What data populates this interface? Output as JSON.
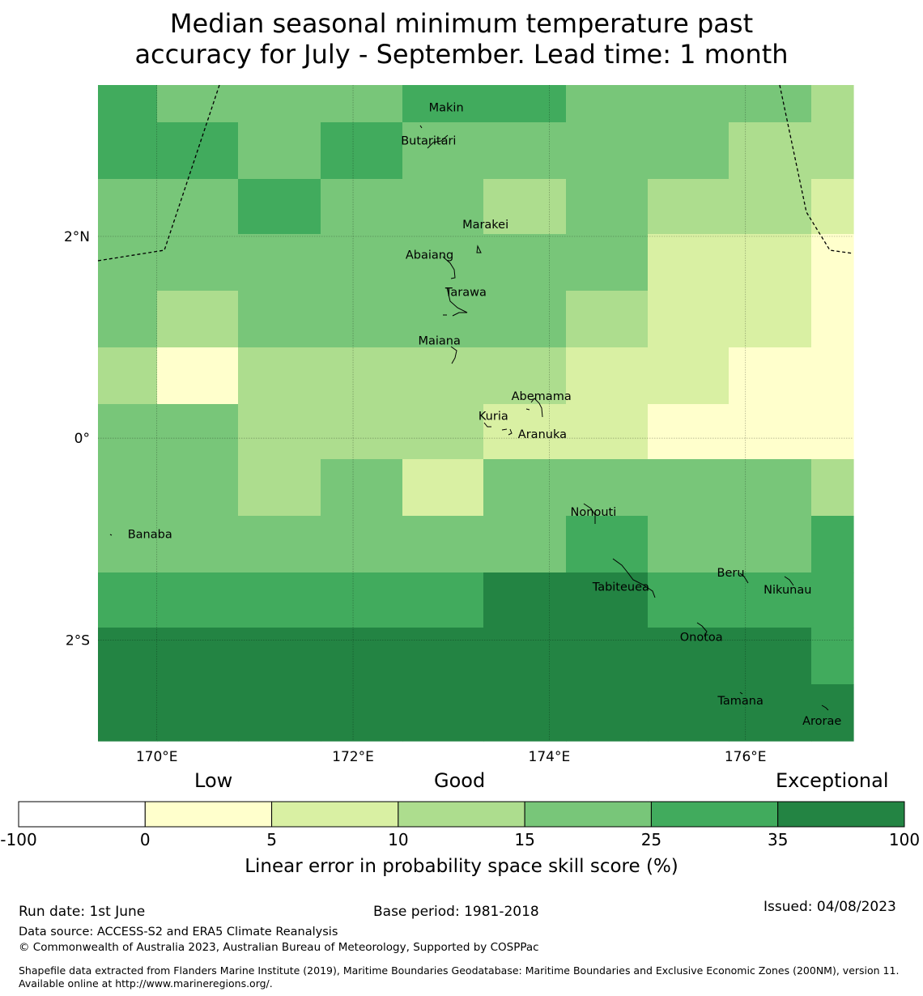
{
  "title": {
    "line1": "Median seasonal minimum temperature past",
    "line2": "accuracy for July - September. Lead time: 1 month"
  },
  "map": {
    "lon_range": [
      169.4,
      177.1
    ],
    "lat_range": [
      -3.0,
      3.5
    ],
    "lat_labels": [
      {
        "lat": 2,
        "label": "2°N"
      },
      {
        "lat": 0,
        "label": "0°"
      },
      {
        "lat": -2,
        "label": "2°S"
      }
    ],
    "lon_labels": [
      {
        "lon": 170,
        "label": "170°E"
      },
      {
        "lon": 172,
        "label": "172°E"
      },
      {
        "lon": 174,
        "label": "174°E"
      },
      {
        "lon": 176,
        "label": "176°E"
      }
    ],
    "grid_lon_edges": [
      169.4,
      170.0,
      170.83,
      171.67,
      172.5,
      173.33,
      174.17,
      175.0,
      175.83,
      176.67,
      177.1
    ],
    "grid_lat_edges": [
      3.5,
      3.13,
      2.57,
      2.02,
      1.46,
      0.9,
      0.34,
      -0.21,
      -0.77,
      -1.33,
      -1.88,
      -2.44,
      -3.0
    ],
    "skill_cells": [
      [
        5,
        4,
        4,
        4,
        5,
        5,
        4,
        4,
        4,
        3
      ],
      [
        5,
        5,
        4,
        5,
        4,
        4,
        4,
        4,
        3,
        3
      ],
      [
        4,
        4,
        5,
        4,
        4,
        3,
        4,
        3,
        3,
        2
      ],
      [
        4,
        4,
        4,
        4,
        4,
        4,
        4,
        2,
        2,
        1
      ],
      [
        4,
        3,
        4,
        4,
        4,
        4,
        3,
        2,
        2,
        1
      ],
      [
        3,
        1,
        3,
        3,
        3,
        3,
        2,
        2,
        1,
        1
      ],
      [
        4,
        4,
        3,
        3,
        3,
        2,
        2,
        1,
        1,
        1
      ],
      [
        4,
        4,
        3,
        4,
        2,
        4,
        4,
        4,
        4,
        3
      ],
      [
        4,
        4,
        4,
        4,
        4,
        4,
        5,
        4,
        4,
        5
      ],
      [
        5,
        5,
        5,
        5,
        5,
        6,
        6,
        5,
        5,
        5
      ],
      [
        6,
        6,
        6,
        6,
        6,
        6,
        6,
        6,
        6,
        5
      ],
      [
        6,
        6,
        6,
        6,
        6,
        6,
        6,
        6,
        6,
        6
      ]
    ],
    "islands": [
      {
        "name": "Makin",
        "lon": 172.95,
        "lat": 3.28
      },
      {
        "name": "Butaritari",
        "lon": 172.77,
        "lat": 2.95
      },
      {
        "name": "Marakei",
        "lon": 173.35,
        "lat": 2.12
      },
      {
        "name": "Abaiang",
        "lon": 172.78,
        "lat": 1.82
      },
      {
        "name": "Tarawa",
        "lon": 173.15,
        "lat": 1.45
      },
      {
        "name": "Maiana",
        "lon": 172.88,
        "lat": 0.97
      },
      {
        "name": "Abemama",
        "lon": 173.92,
        "lat": 0.42
      },
      {
        "name": "Kuria",
        "lon": 173.43,
        "lat": 0.22
      },
      {
        "name": "Aranuka",
        "lon": 173.93,
        "lat": 0.04
      },
      {
        "name": "Nonouti",
        "lon": 174.45,
        "lat": -0.73
      },
      {
        "name": "Banaba",
        "lon": 169.93,
        "lat": -0.95
      },
      {
        "name": "Beru",
        "lon": 175.85,
        "lat": -1.33
      },
      {
        "name": "Tabiteuea",
        "lon": 174.73,
        "lat": -1.47
      },
      {
        "name": "Nikunau",
        "lon": 176.43,
        "lat": -1.5
      },
      {
        "name": "Onotoa",
        "lon": 175.55,
        "lat": -1.97
      },
      {
        "name": "Tamana",
        "lon": 175.95,
        "lat": -2.6
      },
      {
        "name": "Arorae",
        "lon": 176.78,
        "lat": -2.8
      }
    ]
  },
  "legend": {
    "categories": [
      "Low",
      "Good",
      "Exceptional"
    ],
    "bins": [
      {
        "from": -100,
        "to": 0,
        "color": "#ffffff"
      },
      {
        "from": 0,
        "to": 5,
        "color": "#ffffcc"
      },
      {
        "from": 5,
        "to": 10,
        "color": "#d9f0a3"
      },
      {
        "from": 10,
        "to": 15,
        "color": "#addd8e"
      },
      {
        "from": 15,
        "to": 25,
        "color": "#78c679"
      },
      {
        "from": 25,
        "to": 35,
        "color": "#41ab5d"
      },
      {
        "from": 35,
        "to": 100,
        "color": "#238443"
      }
    ],
    "tick_labels": [
      "-100",
      "0",
      "5",
      "10",
      "15",
      "25",
      "35",
      "100"
    ],
    "axis_label": "Linear error in probability space skill score (%)"
  },
  "footer": {
    "run_date": "Run date: 1st June",
    "base_period": "Base period: 1981-2018",
    "issued": "Issued: 04/08/2023",
    "data_source": "Data source: ACCESS-S2 and ERA5 Climate Reanalysis",
    "copyright": "© Commonwealth of Australia 2023, Australian Bureau of Meteorology, Supported by COSPPac",
    "shapefile": "Shapefile data extracted from Flanders Marine Institute (2019), Maritime Boundaries Geodatabase: Maritime Boundaries and Exclusive Economic Zones (200NM), version 11. Available online at http://www.marineregions.org/."
  }
}
